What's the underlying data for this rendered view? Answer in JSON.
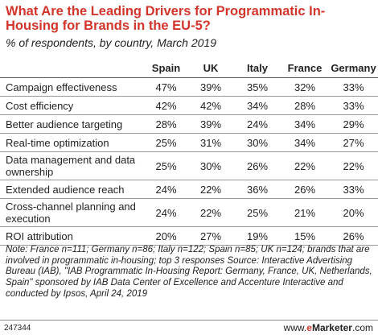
{
  "header": {
    "title": "What Are the Leading Drivers for Programmatic In-Housing for Brands in the EU-5?",
    "subtitle": "% of respondents, by country, March 2019"
  },
  "chart_data": {
    "type": "table",
    "columns": [
      "Spain",
      "UK",
      "Italy",
      "France",
      "Germany"
    ],
    "rows": [
      {
        "label": "Campaign effectiveness",
        "values": [
          "47%",
          "39%",
          "35%",
          "32%",
          "33%"
        ]
      },
      {
        "label": "Cost efficiency",
        "values": [
          "42%",
          "42%",
          "34%",
          "28%",
          "33%"
        ]
      },
      {
        "label": "Better audience targeting",
        "values": [
          "28%",
          "39%",
          "24%",
          "34%",
          "29%"
        ]
      },
      {
        "label": "Real-time optimization",
        "values": [
          "25%",
          "31%",
          "30%",
          "34%",
          "27%"
        ]
      },
      {
        "label": "Data management and data ownership",
        "values": [
          "25%",
          "30%",
          "26%",
          "22%",
          "22%"
        ]
      },
      {
        "label": "Extended audience reach",
        "values": [
          "24%",
          "22%",
          "36%",
          "26%",
          "33%"
        ]
      },
      {
        "label": "Cross-channel planning and execution",
        "values": [
          "24%",
          "22%",
          "25%",
          "21%",
          "20%"
        ]
      },
      {
        "label": "ROI attribution",
        "values": [
          "20%",
          "27%",
          "19%",
          "15%",
          "26%"
        ]
      }
    ]
  },
  "note": "Note: France n=111; Germany n=86; Italy n=122; Spain n=85; UK n=124; brands that are involved in programmatic in-housing; top 3 responses Source: Interactive Advertising Bureau (IAB), \"IAB Programmatic In-Housing Report: Germany, France, UK, Netherlands, Spain\" sponsored by IAB Data Center of Excellence and Accenture Interactive and conducted by Ipsos, April 24, 2019",
  "footer": {
    "id": "247344",
    "brand_prefix": "www.",
    "brand_e": "e",
    "brand_name": "Marketer",
    "brand_suffix": ".com"
  },
  "colors": {
    "title": "#d2352b",
    "brand_accent": "#d2352b"
  }
}
